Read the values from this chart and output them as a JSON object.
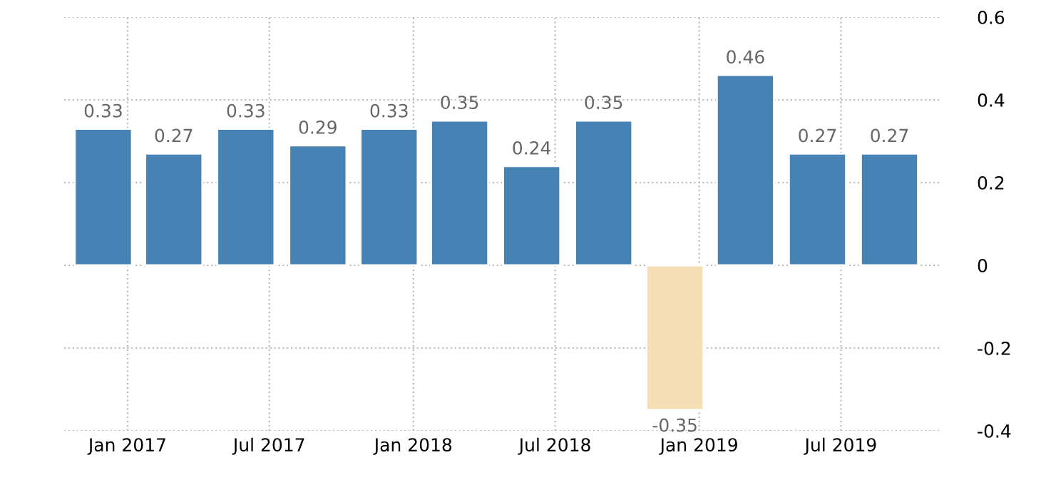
{
  "chart_data": {
    "type": "bar",
    "x": [
      "2016-12",
      "2017-03",
      "2017-06",
      "2017-09",
      "2017-12",
      "2018-03",
      "2018-06",
      "2018-09",
      "2018-12",
      "2019-03",
      "2019-06",
      "2019-09"
    ],
    "values": [
      0.33,
      0.27,
      0.33,
      0.29,
      0.33,
      0.35,
      0.24,
      0.35,
      -0.35,
      0.46,
      0.27,
      0.27
    ],
    "colors": [
      "#4682b4",
      "#4682b4",
      "#4682b4",
      "#4682b4",
      "#4682b4",
      "#4682b4",
      "#4682b4",
      "#4682b4",
      "#f5deb3",
      "#4682b4",
      "#4682b4",
      "#4682b4"
    ],
    "xlim": [
      "2016-10-12",
      "2019-11-06"
    ],
    "xticks": [
      {
        "value": "2017-01",
        "label": "Jan 2017"
      },
      {
        "value": "2017-07",
        "label": "Jul 2017"
      },
      {
        "value": "2018-01",
        "label": "Jan 2018"
      },
      {
        "value": "2018-07",
        "label": "Jul 2018"
      },
      {
        "value": "2019-01",
        "label": "Jan 2019"
      },
      {
        "value": "2019-07",
        "label": "Jul 2019"
      }
    ],
    "ylim": [
      -0.4,
      0.6
    ],
    "yticks": [
      -0.4,
      -0.2,
      0,
      0.2,
      0.4,
      0.6
    ],
    "grid": true,
    "data_labels": true
  }
}
